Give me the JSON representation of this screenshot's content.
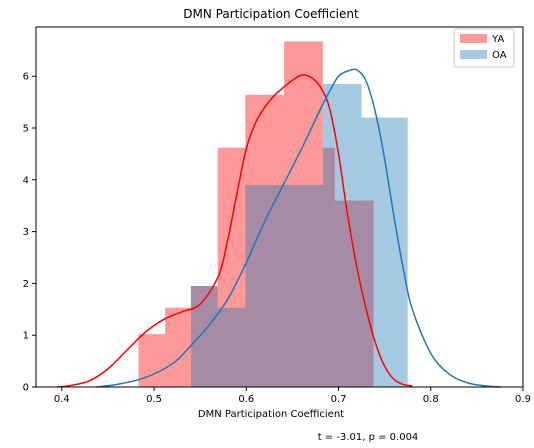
{
  "chart_data": {
    "type": "histogram",
    "title": "DMN Participation Coefficient",
    "xlabel": "DMN Participation Coefficient",
    "ylabel": "",
    "xlim": [
      0.372,
      0.9
    ],
    "ylim": [
      0,
      6.95
    ],
    "xticks": [
      0.4,
      0.5,
      0.6,
      0.7,
      0.8,
      0.9
    ],
    "yticks": [
      0,
      1,
      2,
      3,
      4,
      5,
      6
    ],
    "grid": false,
    "legend_position": "top-right",
    "annotation": "t = -3.01, p = 0.004",
    "series": [
      {
        "name": "YA",
        "color": "#ff0000",
        "bar_alpha": 0.4,
        "bins": [
          {
            "x0": 0.483,
            "x1": 0.512,
            "value": 1.02
          },
          {
            "x0": 0.512,
            "x1": 0.54,
            "value": 1.53
          },
          {
            "x0": 0.54,
            "x1": 0.569,
            "value": 1.95
          },
          {
            "x0": 0.569,
            "x1": 0.599,
            "value": 4.62
          },
          {
            "x0": 0.599,
            "x1": 0.641,
            "value": 5.64
          },
          {
            "x0": 0.641,
            "x1": 0.683,
            "value": 6.67
          },
          {
            "x0": 0.683,
            "x1": 0.696,
            "value": 4.62
          },
          {
            "x0": 0.696,
            "x1": 0.738,
            "value": 3.6
          }
        ],
        "kde": {
          "x": [
            0.395,
            0.41,
            0.43,
            0.45,
            0.47,
            0.49,
            0.51,
            0.53,
            0.55,
            0.57,
            0.58,
            0.59,
            0.6,
            0.61,
            0.62,
            0.63,
            0.64,
            0.65,
            0.66,
            0.67,
            0.68,
            0.69,
            0.7,
            0.71,
            0.72,
            0.73,
            0.74,
            0.75,
            0.76,
            0.77,
            0.78
          ],
          "y": [
            0.0,
            0.03,
            0.12,
            0.35,
            0.7,
            1.05,
            1.3,
            1.45,
            1.6,
            2.15,
            2.85,
            3.75,
            4.6,
            5.1,
            5.4,
            5.62,
            5.78,
            5.92,
            6.02,
            5.98,
            5.8,
            5.4,
            4.5,
            3.3,
            2.3,
            1.5,
            0.85,
            0.4,
            0.15,
            0.05,
            0.02
          ]
        }
      },
      {
        "name": "OA",
        "color": "#1f77b4",
        "bar_alpha": 0.4,
        "bins": [
          {
            "x0": 0.54,
            "x1": 0.569,
            "value": 1.95
          },
          {
            "x0": 0.569,
            "x1": 0.599,
            "value": 1.53
          },
          {
            "x0": 0.599,
            "x1": 0.641,
            "value": 3.9
          },
          {
            "x0": 0.641,
            "x1": 0.683,
            "value": 3.9
          },
          {
            "x0": 0.683,
            "x1": 0.696,
            "value": 5.85
          },
          {
            "x0": 0.696,
            "x1": 0.725,
            "value": 5.85
          },
          {
            "x0": 0.725,
            "x1": 0.738,
            "value": 5.2
          },
          {
            "x0": 0.738,
            "x1": 0.775,
            "value": 5.2
          }
        ],
        "kde": {
          "x": [
            0.437,
            0.46,
            0.49,
            0.52,
            0.54,
            0.56,
            0.58,
            0.6,
            0.62,
            0.64,
            0.66,
            0.68,
            0.69,
            0.7,
            0.71,
            0.72,
            0.73,
            0.74,
            0.75,
            0.76,
            0.77,
            0.78,
            0.8,
            0.82,
            0.84,
            0.86,
            0.876
          ],
          "y": [
            0.0,
            0.05,
            0.18,
            0.45,
            0.8,
            1.2,
            1.7,
            2.4,
            3.2,
            3.9,
            4.6,
            5.35,
            5.7,
            6.0,
            6.1,
            6.12,
            5.9,
            5.3,
            4.4,
            3.3,
            2.3,
            1.5,
            0.65,
            0.25,
            0.08,
            0.02,
            0.0
          ]
        }
      }
    ]
  }
}
